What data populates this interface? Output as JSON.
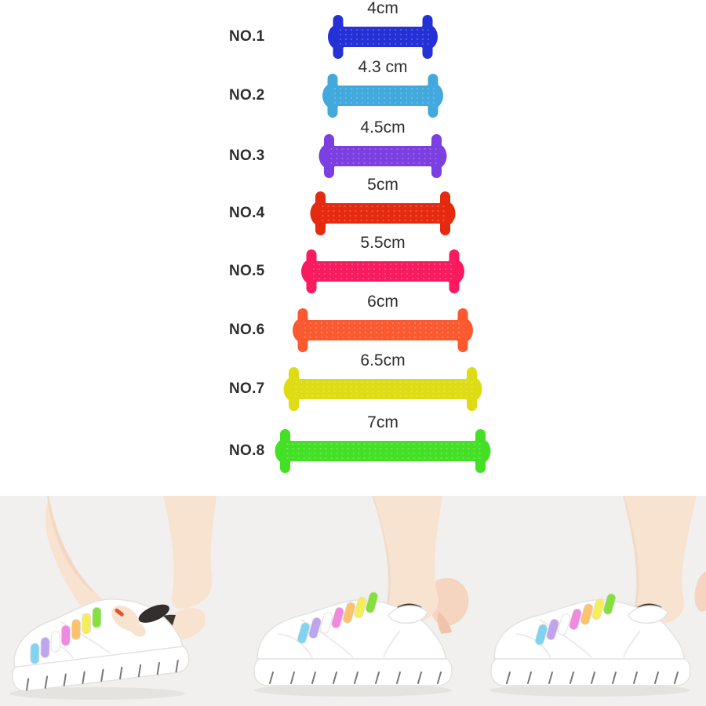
{
  "size_chart": {
    "background": "#ffffff",
    "label_color": "#2e2e2e",
    "rows": [
      {
        "number_label": "NO.1",
        "length_label": "4cm",
        "length_cm": 4,
        "color": "#2531d6"
      },
      {
        "number_label": "NO.2",
        "length_label": "4.3 cm",
        "length_cm": 4.3,
        "color": "#42a9dd"
      },
      {
        "number_label": "NO.3",
        "length_label": "4.5cm",
        "length_cm": 4.5,
        "color": "#7c3fe2"
      },
      {
        "number_label": "NO.4",
        "length_label": "5cm",
        "length_cm": 5,
        "color": "#e52a10"
      },
      {
        "number_label": "NO.5",
        "length_label": "5.5cm",
        "length_cm": 5.5,
        "color": "#f91a60"
      },
      {
        "number_label": "NO.6",
        "length_label": "6cm",
        "length_cm": 6,
        "color": "#fb5a30"
      },
      {
        "number_label": "NO.7",
        "length_label": "6.5cm",
        "length_cm": 6.5,
        "color": "#dedc15"
      },
      {
        "number_label": "NO.8",
        "length_label": "7cm",
        "length_cm": 7,
        "color": "#44e026"
      }
    ]
  },
  "photo_strip": {
    "background": "#f1f0ee",
    "skin_color": "#f8e3d1",
    "skin_shade_color": "#f0cdb4",
    "shoe_color": "#ffffff",
    "sole_tread_color": "#565656",
    "shoe_lace_palette": [
      "#80d4f2",
      "#bfa4ef",
      "#ffffff",
      "#f08ae0",
      "#fcc26e",
      "#f6ee59",
      "#83e03d"
    ],
    "panels": [
      {
        "name": "hand-fitting-laces-into-white-sneaker"
      },
      {
        "name": "white-sneaker-side-view-with-hand-at-heel"
      },
      {
        "name": "white-sneaker-side-view-with-leg"
      }
    ]
  }
}
